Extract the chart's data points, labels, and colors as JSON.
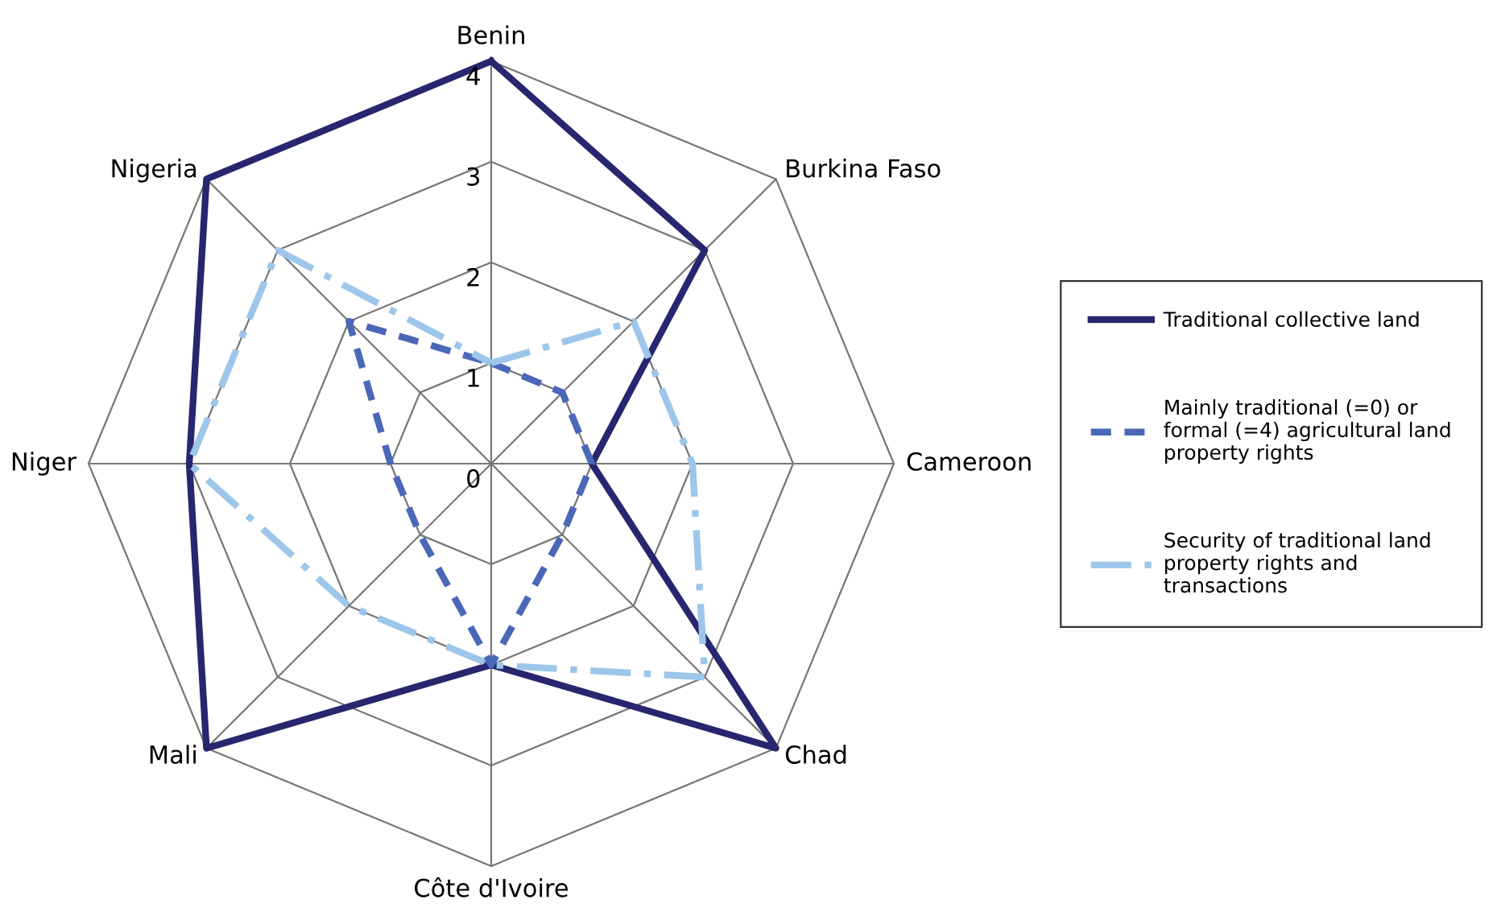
{
  "chart_data": {
    "type": "radar",
    "categories": [
      "Benin",
      "Burkina Faso",
      "Cameroon",
      "Chad",
      "Côte d'Ivoire",
      "Mali",
      "Niger",
      "Nigeria"
    ],
    "ylim": [
      0,
      4
    ],
    "yticks": [
      0,
      1,
      2,
      3,
      4
    ],
    "grid": true,
    "legend": "right",
    "series": [
      {
        "name": "Traditional collective land",
        "color": "#27266f",
        "line_style": "solid",
        "values": [
          4,
          3,
          1,
          4,
          2,
          4,
          3,
          4
        ]
      },
      {
        "name": "Mainly traditional (=0) or\nformal (=4) agricultural land\nproperty rights",
        "color": "#4a67b8",
        "line_style": "dashed",
        "values": [
          1,
          1,
          1,
          1,
          2,
          1,
          1,
          2
        ]
      },
      {
        "name": "Security of traditional land\nproperty rights and\ntransactions",
        "color": "#9dc6ea",
        "line_style": "dashdot",
        "values": [
          1,
          2,
          2,
          3,
          2,
          2,
          3,
          3
        ]
      }
    ]
  }
}
